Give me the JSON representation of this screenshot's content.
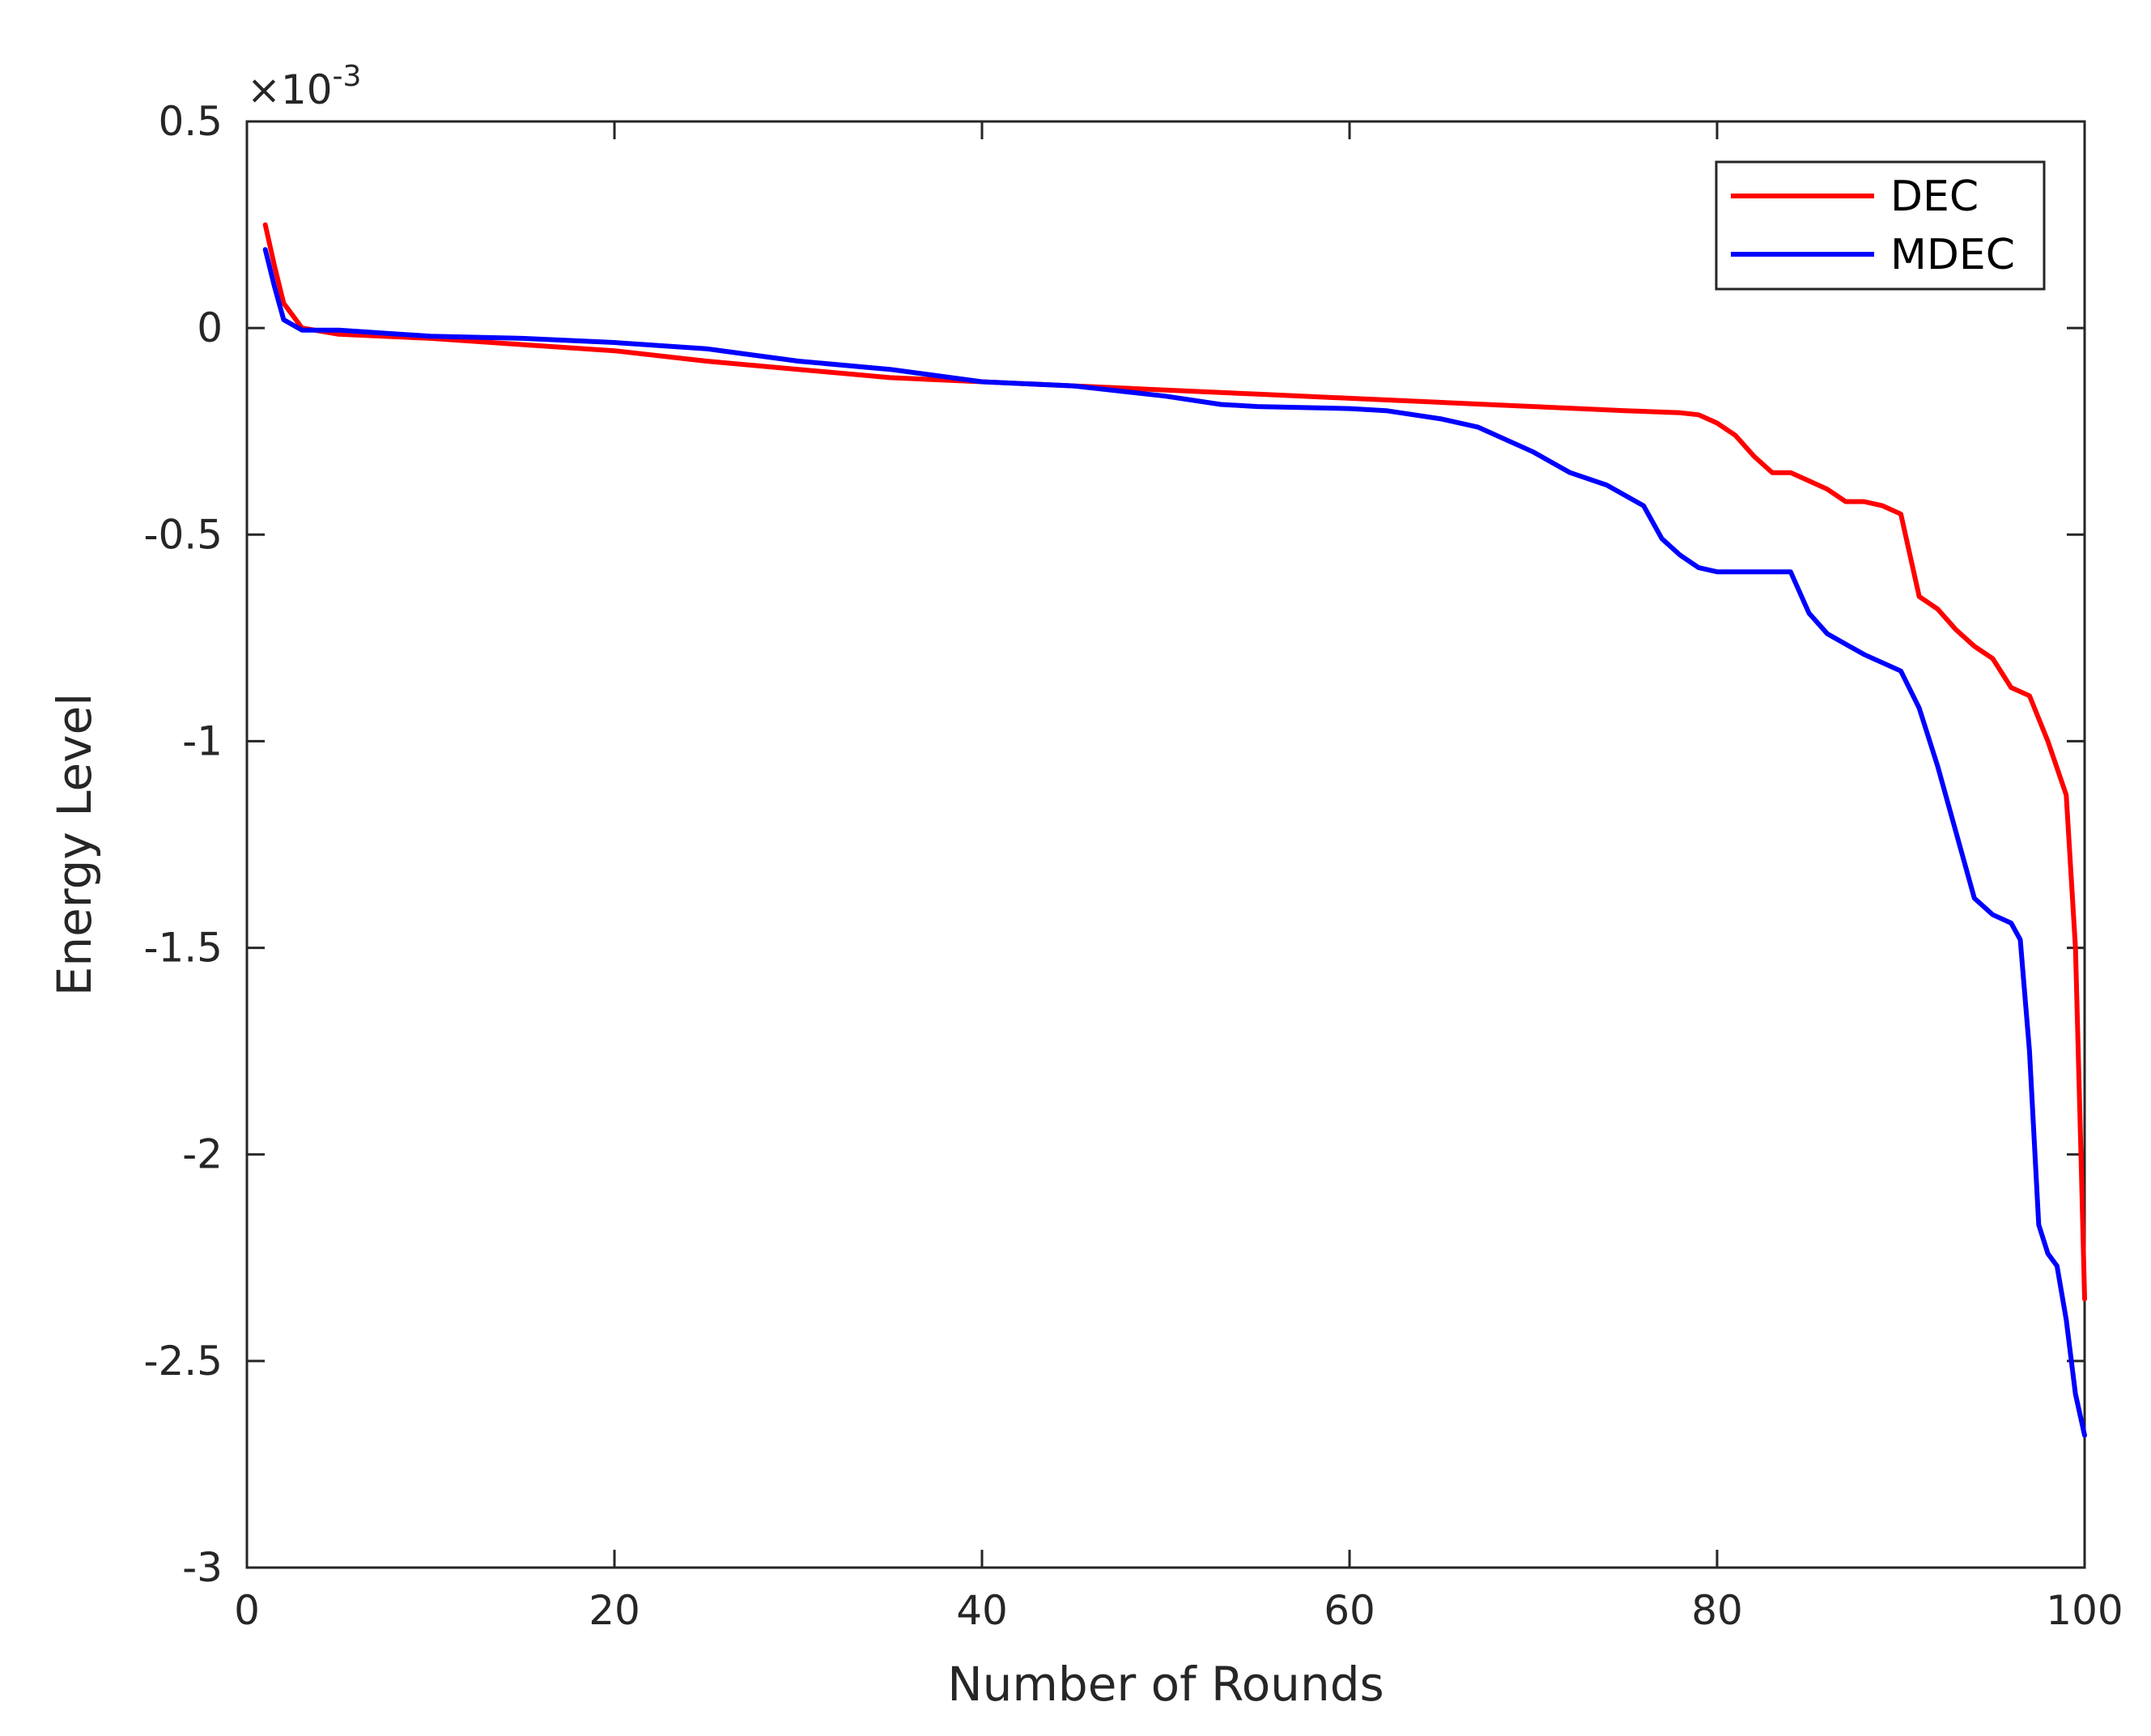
{
  "chart_data": {
    "type": "line",
    "xlabel": "Number of Rounds",
    "ylabel": "Energy Level",
    "exponent_label": "×10",
    "exponent_power": "-3",
    "xlim": [
      0,
      100
    ],
    "ylim": [
      -3,
      0.5
    ],
    "y_scale_factor": 0.001,
    "xticks": [
      0,
      20,
      40,
      60,
      80,
      100
    ],
    "xtick_labels": [
      "0",
      "20",
      "40",
      "60",
      "80",
      "100"
    ],
    "yticks": [
      0.5,
      0,
      -0.5,
      -1,
      -1.5,
      -2,
      -2.5,
      -3
    ],
    "ytick_labels": [
      "0.5",
      "0",
      "-0.5",
      "-1",
      "-1.5",
      "-2",
      "-2.5",
      "-3"
    ],
    "grid": false,
    "legend_position": "top-right",
    "series": [
      {
        "name": "DEC",
        "color": "#ff0000",
        "x": [
          1,
          1.5,
          2,
          3,
          5,
          10,
          15,
          20,
          25,
          30,
          35,
          40,
          45,
          50,
          55,
          60,
          65,
          70,
          75,
          78,
          79,
          80,
          81,
          82,
          83,
          84,
          85,
          86,
          87,
          88,
          89,
          90,
          91,
          92,
          93,
          94,
          95,
          96,
          97,
          98,
          99,
          99.5,
          99.8,
          100
        ],
        "y": [
          0.25,
          0.15,
          0.06,
          0.0,
          -0.015,
          -0.025,
          -0.04,
          -0.055,
          -0.08,
          -0.1,
          -0.12,
          -0.13,
          -0.14,
          -0.15,
          -0.16,
          -0.17,
          -0.18,
          -0.19,
          -0.2,
          -0.205,
          -0.21,
          -0.23,
          -0.26,
          -0.31,
          -0.35,
          -0.35,
          -0.37,
          -0.39,
          -0.42,
          -0.42,
          -0.43,
          -0.45,
          -0.65,
          -0.68,
          -0.73,
          -0.77,
          -0.8,
          -0.87,
          -0.89,
          -1.0,
          -1.13,
          -1.5,
          -2.0,
          -2.35
        ]
      },
      {
        "name": "MDEC",
        "color": "#0000ff",
        "x": [
          1,
          1.5,
          2,
          3,
          5,
          10,
          15,
          20,
          25,
          30,
          35,
          40,
          45,
          50,
          53,
          55,
          60,
          62,
          65,
          67,
          70,
          72,
          74,
          76,
          77,
          78,
          79,
          80,
          82,
          84,
          85,
          86,
          88,
          90,
          91,
          92,
          93,
          94,
          95,
          96,
          96.5,
          97,
          97.5,
          98,
          98.5,
          99,
          99.5,
          100
        ],
        "y": [
          0.19,
          0.1,
          0.02,
          -0.005,
          -0.005,
          -0.02,
          -0.025,
          -0.035,
          -0.05,
          -0.08,
          -0.1,
          -0.13,
          -0.14,
          -0.165,
          -0.185,
          -0.19,
          -0.195,
          -0.2,
          -0.22,
          -0.24,
          -0.3,
          -0.35,
          -0.38,
          -0.43,
          -0.51,
          -0.55,
          -0.58,
          -0.59,
          -0.59,
          -0.59,
          -0.69,
          -0.74,
          -0.79,
          -0.83,
          -0.92,
          -1.06,
          -1.22,
          -1.38,
          -1.42,
          -1.44,
          -1.48,
          -1.75,
          -2.17,
          -2.24,
          -2.27,
          -2.4,
          -2.58,
          -2.68
        ]
      }
    ]
  }
}
